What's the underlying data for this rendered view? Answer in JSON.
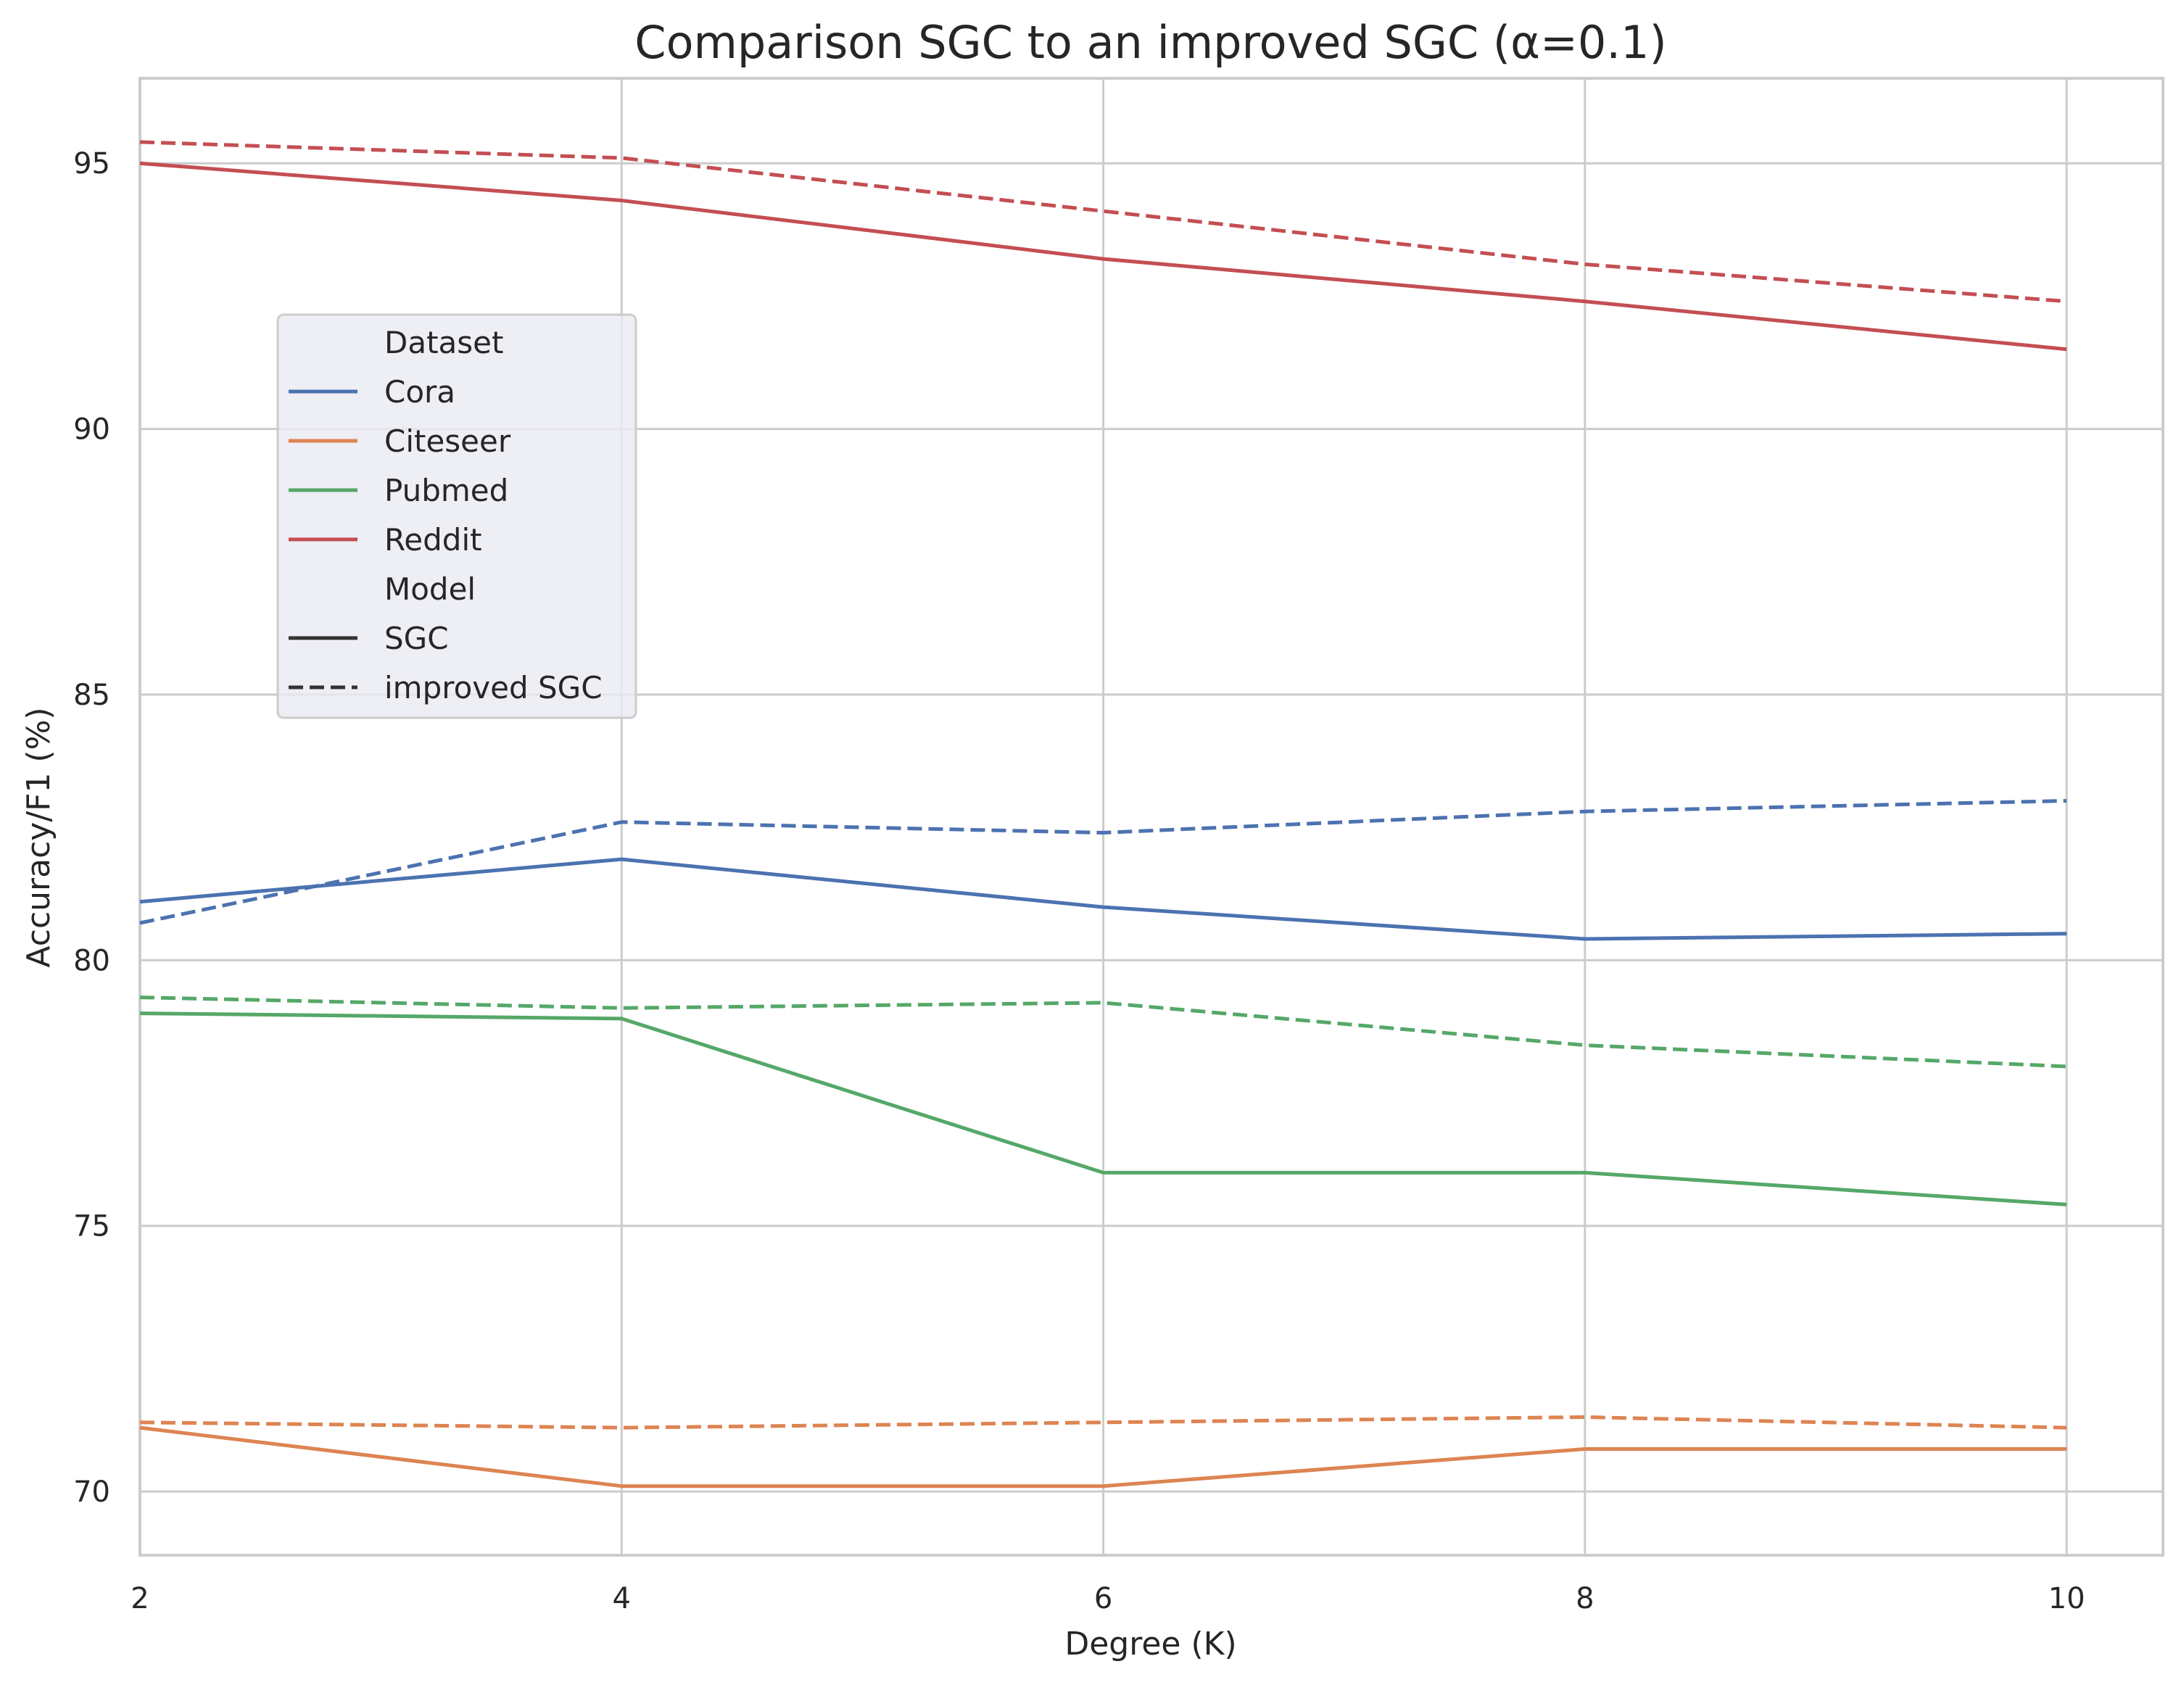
{
  "chart_data": {
    "type": "line",
    "title": "Comparison SGC to an improved SGC (α=0.1)",
    "xlabel": "Degree (K)",
    "ylabel": "Accuracy/F1 (%)",
    "x": [
      2,
      4,
      6,
      8,
      10
    ],
    "xlim": [
      2,
      10.4
    ],
    "ylim": [
      68.8,
      96.6
    ],
    "xticks": [
      "2",
      "4",
      "6",
      "8",
      "10"
    ],
    "yticks": [
      "70",
      "75",
      "80",
      "85",
      "90",
      "95"
    ],
    "grid": true,
    "legend_position": "upper-left",
    "legend": {
      "hue_title": "Dataset",
      "style_title": "Model",
      "datasets": [
        {
          "name": "Cora",
          "color": "#4c72b0"
        },
        {
          "name": "Citeseer",
          "color": "#dd8452"
        },
        {
          "name": "Pubmed",
          "color": "#55a868"
        },
        {
          "name": "Reddit",
          "color": "#c44e52"
        }
      ],
      "models": [
        {
          "name": "SGC",
          "dash": "solid"
        },
        {
          "name": "improved SGC",
          "dash": "dashed"
        }
      ]
    },
    "series": [
      {
        "dataset": "Cora",
        "model": "SGC",
        "color": "#4c72b0",
        "dash": "solid",
        "values": [
          81.1,
          81.9,
          81.0,
          80.4,
          80.5
        ]
      },
      {
        "dataset": "Cora",
        "model": "improved SGC",
        "color": "#4c72b0",
        "dash": "dashed",
        "values": [
          80.7,
          82.6,
          82.4,
          82.8,
          83.0
        ]
      },
      {
        "dataset": "Citeseer",
        "model": "SGC",
        "color": "#dd8452",
        "dash": "solid",
        "values": [
          71.2,
          70.1,
          70.1,
          70.8,
          70.8
        ]
      },
      {
        "dataset": "Citeseer",
        "model": "improved SGC",
        "color": "#dd8452",
        "dash": "dashed",
        "values": [
          71.3,
          71.2,
          71.3,
          71.4,
          71.2
        ]
      },
      {
        "dataset": "Pubmed",
        "model": "SGC",
        "color": "#55a868",
        "dash": "solid",
        "values": [
          79.0,
          78.9,
          76.0,
          76.0,
          75.4
        ]
      },
      {
        "dataset": "Pubmed",
        "model": "improved SGC",
        "color": "#55a868",
        "dash": "dashed",
        "values": [
          79.3,
          79.1,
          79.2,
          78.4,
          78.0
        ]
      },
      {
        "dataset": "Reddit",
        "model": "SGC",
        "color": "#c44e52",
        "dash": "solid",
        "values": [
          95.0,
          94.3,
          93.2,
          92.4,
          91.5
        ]
      },
      {
        "dataset": "Reddit",
        "model": "improved SGC",
        "color": "#c44e52",
        "dash": "dashed",
        "values": [
          95.4,
          95.1,
          94.1,
          93.1,
          92.4
        ]
      }
    ]
  }
}
